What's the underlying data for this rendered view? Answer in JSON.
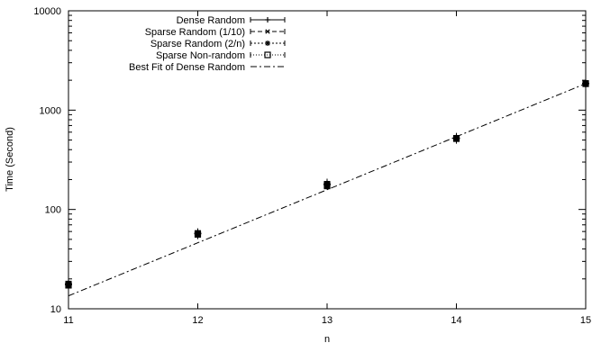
{
  "chart_data": {
    "type": "scatter",
    "title": "",
    "xlabel": "n",
    "ylabel": "Time (Second)",
    "xlim": [
      11,
      15
    ],
    "ylim": [
      10,
      10000
    ],
    "yscale": "log",
    "x_ticks": [
      "11",
      "12",
      "13",
      "14",
      "15"
    ],
    "y_ticks": [
      "10",
      "100",
      "1000",
      "10000"
    ],
    "legend_position": "top-left",
    "grid": false,
    "series": [
      {
        "name": "Dense Random",
        "marker": "plus",
        "x": [
          11,
          12,
          13,
          14,
          15
        ],
        "y": [
          17.5,
          57,
          180,
          520,
          1850
        ]
      },
      {
        "name": "Sparse Random (1/10)",
        "marker": "cross",
        "x": [
          11,
          12,
          13,
          14,
          15
        ],
        "y": [
          17.2,
          56,
          172,
          515,
          1840
        ]
      },
      {
        "name": "Sparse Random (2/n)",
        "marker": "star",
        "x": [
          11,
          12,
          13,
          14,
          15
        ],
        "y": [
          17.8,
          57.5,
          178,
          522,
          1860
        ]
      },
      {
        "name": "Sparse Non-random",
        "marker": "square",
        "x": [
          11,
          12,
          13,
          14,
          15
        ],
        "y": [
          17.3,
          56.5,
          175,
          518,
          1845
        ]
      }
    ],
    "fit": {
      "name": "Best Fit of Dense Random",
      "x": [
        11,
        15
      ],
      "y": [
        13.5,
        1850
      ]
    }
  }
}
